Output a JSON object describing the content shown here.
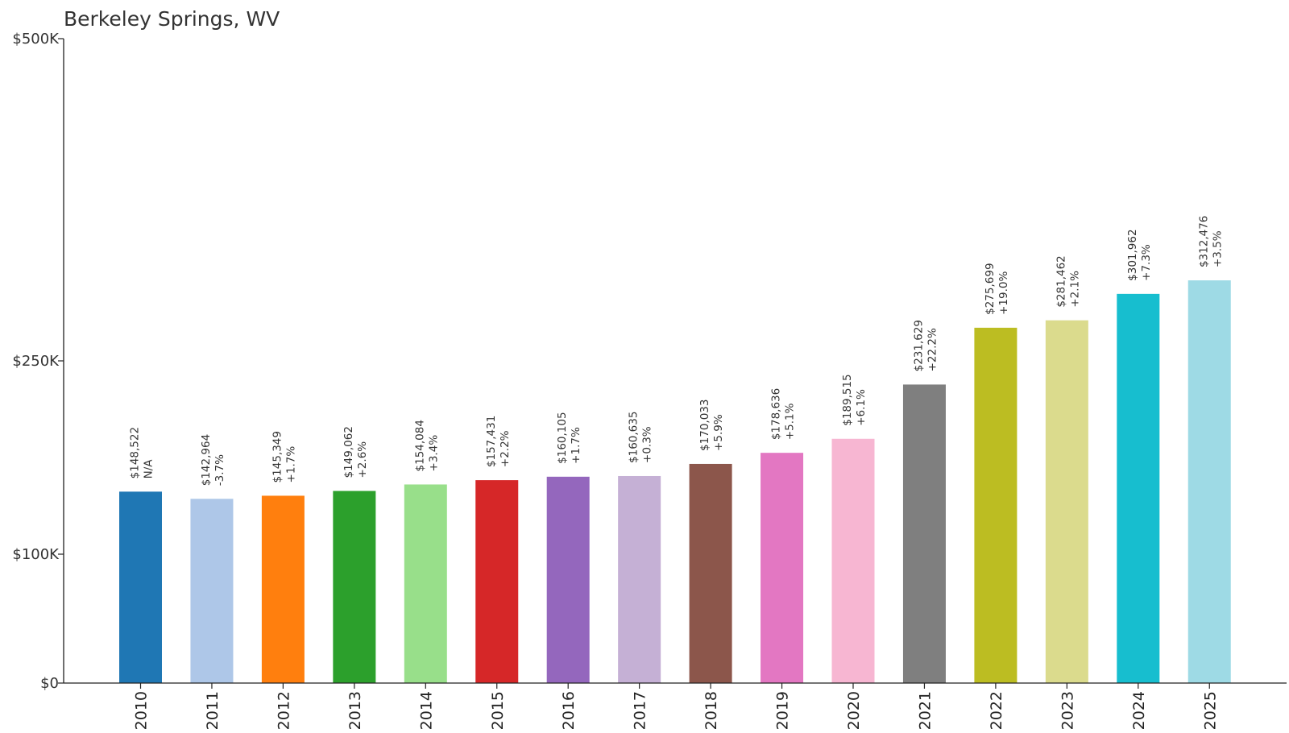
{
  "chart_data": {
    "type": "bar",
    "title": "Berkeley Springs, WV",
    "xlabel": "",
    "ylabel": "",
    "ylim": [
      0,
      500000
    ],
    "y_scale": "nonlinear-ticks",
    "y_ticks": [
      {
        "value": 0,
        "label": "$0"
      },
      {
        "value": 100000,
        "label": "$100K"
      },
      {
        "value": 250000,
        "label": "$250K"
      },
      {
        "value": 500000,
        "label": "$500K"
      }
    ],
    "grid": false,
    "legend": "none",
    "categories": [
      "2010",
      "2011",
      "2012",
      "2013",
      "2014",
      "2015",
      "2016",
      "2017",
      "2018",
      "2019",
      "2020",
      "2021",
      "2022",
      "2023",
      "2024",
      "2025"
    ],
    "values": [
      148522,
      142964,
      145349,
      149062,
      154084,
      157431,
      160105,
      160635,
      170033,
      178636,
      189515,
      231629,
      275699,
      281462,
      301962,
      312476
    ],
    "value_labels": [
      "$148,522",
      "$142,964",
      "$145,349",
      "$149,062",
      "$154,084",
      "$157,431",
      "$160,105",
      "$160,635",
      "$170,033",
      "$178,636",
      "$189,515",
      "$231,629",
      "$275,699",
      "$281,462",
      "$301,962",
      "$312,476"
    ],
    "change_labels": [
      "N/A",
      "-3.7%",
      "+1.7%",
      "+2.6%",
      "+3.4%",
      "+2.2%",
      "+1.7%",
      "+0.3%",
      "+5.9%",
      "+5.1%",
      "+6.1%",
      "+22.2%",
      "+19.0%",
      "+2.1%",
      "+7.3%",
      "+3.5%"
    ],
    "colors": [
      "#1f77b4",
      "#aec7e8",
      "#ff7f0e",
      "#2ca02c",
      "#98df8a",
      "#d62728",
      "#9467bd",
      "#c5b0d5",
      "#8c564b",
      "#e377c2",
      "#f7b6d2",
      "#7f7f7f",
      "#bcbd22",
      "#dbdb8d",
      "#17becf",
      "#9edae5"
    ]
  }
}
